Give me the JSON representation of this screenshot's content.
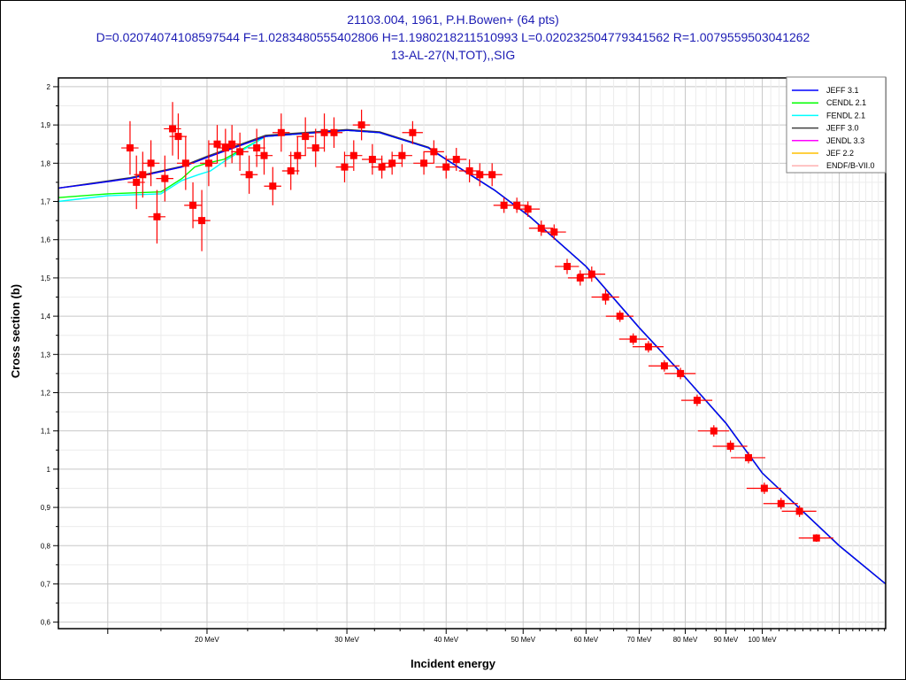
{
  "chart_data": {
    "type": "scatter",
    "title_lines": [
      "21103.004, 1961, P.H.Bowen+ (64 pts)",
      "D=0.02074074108597544 F=1.0283480555402806 H=1.1980218211510993 L=0.020232504779341562 R=1.0079559503041262",
      "13-AL-27(N,TOT),,SIG"
    ],
    "xlabel": "Incident energy",
    "ylabel": "Cross section (b)",
    "xscale": "log",
    "xlim": [
      13.0,
      143.0
    ],
    "ylim": [
      0.583,
      2.023
    ],
    "grid": true,
    "legend_position": "top-right",
    "x_ticks": [
      {
        "value": 20,
        "label": "20 MeV"
      },
      {
        "value": 30,
        "label": "30 MeV"
      },
      {
        "value": 40,
        "label": "40 MeV"
      },
      {
        "value": 50,
        "label": "50 MeV"
      },
      {
        "value": 60,
        "label": "60 MeV"
      },
      {
        "value": 70,
        "label": "70 MeV"
      },
      {
        "value": 80,
        "label": "80 MeV"
      },
      {
        "value": 90,
        "label": "90 MeV"
      },
      {
        "value": 100,
        "label": "100 MeV"
      }
    ],
    "y_ticks": [
      {
        "value": 2.0,
        "label": "2"
      },
      {
        "value": 1.9,
        "label": "1,9"
      },
      {
        "value": 1.8,
        "label": "1,8"
      },
      {
        "value": 1.7,
        "label": "1,7"
      },
      {
        "value": 1.6,
        "label": "1,6"
      },
      {
        "value": 1.5,
        "label": "1,5"
      },
      {
        "value": 1.4,
        "label": "1,4"
      },
      {
        "value": 1.3,
        "label": "1,3"
      },
      {
        "value": 1.2,
        "label": "1,2"
      },
      {
        "value": 1.1,
        "label": "1,1"
      },
      {
        "value": 1.0,
        "label": "1"
      },
      {
        "value": 0.9,
        "label": "0,9"
      },
      {
        "value": 0.8,
        "label": "0,8"
      },
      {
        "value": 0.7,
        "label": "0,7"
      },
      {
        "value": 0.6,
        "label": "0,6"
      }
    ],
    "experimental": {
      "name": "P.H.Bowen+ 1961",
      "color": "#ff0000",
      "energy_MeV": [
        16.0,
        16.3,
        16.6,
        17.0,
        17.3,
        17.7,
        18.1,
        18.4,
        18.8,
        19.2,
        19.7,
        20.1,
        20.6,
        21.1,
        21.5,
        22.0,
        22.6,
        23.1,
        23.6,
        24.2,
        24.8,
        25.5,
        26.0,
        26.6,
        27.4,
        28.1,
        28.9,
        29.8,
        30.6,
        31.3,
        32.3,
        33.2,
        34.2,
        35.2,
        36.3,
        37.5,
        38.6,
        40.0,
        41.2,
        42.8,
        44.1,
        45.7,
        47.3,
        49.1,
        50.7,
        52.7,
        54.7,
        56.8,
        59.0,
        61.0,
        63.5,
        66.2,
        68.8,
        71.9,
        75.3,
        78.9,
        82.8,
        86.9,
        91.2,
        96.1,
        100.6,
        105.6,
        111.4,
        117.0
      ],
      "sigma_b": [
        1.84,
        1.75,
        1.77,
        1.8,
        1.66,
        1.76,
        1.89,
        1.87,
        1.8,
        1.69,
        1.65,
        1.8,
        1.85,
        1.84,
        1.85,
        1.83,
        1.77,
        1.84,
        1.82,
        1.74,
        1.88,
        1.78,
        1.82,
        1.87,
        1.84,
        1.88,
        1.88,
        1.79,
        1.82,
        1.9,
        1.81,
        1.79,
        1.8,
        1.82,
        1.88,
        1.8,
        1.83,
        1.79,
        1.81,
        1.78,
        1.77,
        1.77,
        1.69,
        1.69,
        1.68,
        1.63,
        1.62,
        1.53,
        1.5,
        1.51,
        1.45,
        1.4,
        1.34,
        1.32,
        1.27,
        1.25,
        1.18,
        1.1,
        1.06,
        1.03,
        0.95,
        0.91,
        0.89,
        0.82
      ],
      "sigma_err_b": [
        0.07,
        0.07,
        0.06,
        0.06,
        0.07,
        0.06,
        0.07,
        0.06,
        0.07,
        0.06,
        0.08,
        0.06,
        0.05,
        0.05,
        0.05,
        0.05,
        0.05,
        0.05,
        0.05,
        0.05,
        0.05,
        0.05,
        0.05,
        0.05,
        0.05,
        0.05,
        0.04,
        0.04,
        0.04,
        0.04,
        0.04,
        0.03,
        0.03,
        0.03,
        0.03,
        0.03,
        0.03,
        0.03,
        0.03,
        0.03,
        0.03,
        0.03,
        0.02,
        0.02,
        0.02,
        0.02,
        0.02,
        0.02,
        0.02,
        0.02,
        0.02,
        0.015,
        0.015,
        0.015,
        0.015,
        0.015,
        0.015,
        0.015,
        0.015,
        0.015,
        0.015,
        0.015,
        0.015,
        0.01
      ],
      "energy_err_frac": [
        0.025,
        0.025,
        0.025,
        0.025,
        0.025,
        0.025,
        0.025,
        0.025,
        0.025,
        0.025,
        0.025,
        0.025,
        0.025,
        0.025,
        0.025,
        0.025,
        0.025,
        0.025,
        0.025,
        0.025,
        0.025,
        0.025,
        0.025,
        0.025,
        0.025,
        0.025,
        0.025,
        0.025,
        0.025,
        0.025,
        0.03,
        0.03,
        0.03,
        0.03,
        0.03,
        0.03,
        0.03,
        0.03,
        0.03,
        0.03,
        0.03,
        0.03,
        0.03,
        0.035,
        0.035,
        0.035,
        0.035,
        0.035,
        0.035,
        0.04,
        0.04,
        0.04,
        0.04,
        0.045,
        0.045,
        0.045,
        0.045,
        0.045,
        0.05,
        0.05,
        0.05,
        0.05,
        0.05,
        0.05
      ]
    },
    "series": [
      {
        "name": "JENDL 3.3",
        "color": "#ff00ff",
        "x": [
          13,
          16,
          18.6,
          20,
          23.7,
          30,
          33,
          38,
          40,
          46,
          51,
          60,
          70,
          80,
          90,
          100,
          125,
          143
        ],
        "y": [
          1.735,
          1.76,
          1.79,
          1.815,
          1.87,
          1.886,
          1.88,
          1.84,
          1.81,
          1.73,
          1.66,
          1.53,
          1.37,
          1.24,
          1.12,
          0.99,
          0.8,
          0.7
        ]
      },
      {
        "name": "JEF 2.2",
        "color": "#ffc000",
        "x": [
          13,
          16,
          18.6,
          20,
          23.7,
          30,
          33,
          38,
          40,
          46,
          51,
          60,
          70,
          80,
          90,
          100,
          125,
          143
        ],
        "y": [
          1.735,
          1.76,
          1.79,
          1.815,
          1.87,
          1.886,
          1.88,
          1.84,
          1.81,
          1.73,
          1.66,
          1.53,
          1.37,
          1.24,
          1.12,
          0.99,
          0.8,
          0.7
        ]
      },
      {
        "name": "ENDF/B-VII.0",
        "color": "#ffb0b0",
        "x": [
          13,
          16,
          18.6,
          20,
          23.7,
          30,
          33,
          38,
          40,
          46,
          51,
          60,
          70,
          80,
          90,
          100,
          125,
          143
        ],
        "y": [
          1.735,
          1.76,
          1.79,
          1.815,
          1.87,
          1.886,
          1.88,
          1.84,
          1.81,
          1.73,
          1.66,
          1.53,
          1.37,
          1.24,
          1.12,
          0.99,
          0.8,
          0.7
        ]
      },
      {
        "name": "CENDL 2.1",
        "color": "#00ff00",
        "x": [
          13,
          15,
          17.5,
          18.6,
          19.3,
          20,
          21,
          23.7,
          30,
          33,
          38,
          40,
          46,
          51,
          60,
          70,
          80,
          90,
          100,
          125,
          143
        ],
        "y": [
          1.71,
          1.72,
          1.725,
          1.76,
          1.79,
          1.8,
          1.81,
          1.87,
          1.886,
          1.88,
          1.84,
          1.81,
          1.73,
          1.66,
          1.53,
          1.37,
          1.24,
          1.12,
          0.99,
          0.8,
          0.7
        ]
      },
      {
        "name": "FENDL 2.1",
        "color": "#00ffff",
        "x": [
          13,
          15,
          17.5,
          18.6,
          19.5,
          20.2,
          21.2,
          23.7,
          30,
          33,
          38,
          40,
          46,
          51,
          60,
          70,
          80,
          90,
          100,
          125,
          143
        ],
        "y": [
          1.7,
          1.715,
          1.72,
          1.755,
          1.77,
          1.78,
          1.81,
          1.87,
          1.886,
          1.88,
          1.84,
          1.81,
          1.73,
          1.66,
          1.53,
          1.37,
          1.24,
          1.12,
          0.99,
          0.8,
          0.7
        ]
      },
      {
        "name": "JEFF 3.0",
        "color": "#404040",
        "x": [
          13,
          16,
          18.6,
          20,
          23.7,
          30,
          33,
          38,
          40,
          46,
          51,
          60,
          70,
          80,
          90,
          100,
          125,
          143
        ],
        "y": [
          1.735,
          1.762,
          1.792,
          1.818,
          1.873,
          1.888,
          1.882,
          1.842,
          1.81,
          1.73,
          1.66,
          1.53,
          1.37,
          1.24,
          1.12,
          0.99,
          0.8,
          0.7
        ]
      },
      {
        "name": "JEFF 3.1",
        "color": "#0000ff",
        "x": [
          13,
          14.2,
          16,
          18.6,
          20,
          23.7,
          30,
          33,
          38,
          40,
          46,
          51,
          60,
          70,
          80,
          90,
          100,
          125,
          143
        ],
        "y": [
          1.735,
          1.745,
          1.76,
          1.79,
          1.815,
          1.87,
          1.886,
          1.88,
          1.84,
          1.81,
          1.73,
          1.66,
          1.53,
          1.37,
          1.24,
          1.12,
          0.99,
          0.8,
          0.7
        ]
      }
    ],
    "legend": [
      "JEFF 3.1",
      "CENDL 2.1",
      "FENDL 2.1",
      "JEFF 3.0",
      "JENDL 3.3",
      "JEF 2.2",
      "ENDF/B-VII.0"
    ]
  }
}
